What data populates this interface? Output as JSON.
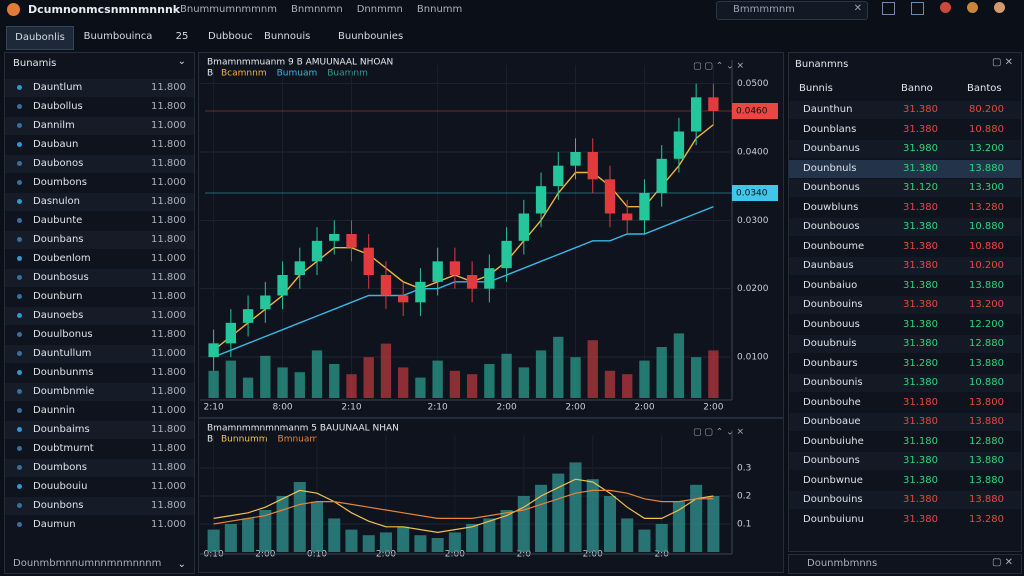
{
  "header": {
    "title": "Dcumnonmcsnmnmnnnk",
    "menu": [
      "Bnummumnmmnm",
      "Bnmnnmn",
      "Dnnmmn",
      "Bnnumm"
    ],
    "search": "Bmmmmnm"
  },
  "left_tabs": [
    "Daubonlis",
    "Buumbouinca",
    "25"
  ],
  "main_tabs": [
    "Dubbouc",
    "Bunnouis",
    "Buunbounies"
  ],
  "watchlist": {
    "title": "Bunamis",
    "rows": [
      [
        "Dauntlum",
        "11.800"
      ],
      [
        "Daubollus",
        "11.800"
      ],
      [
        "Dannilm",
        "11.000"
      ],
      [
        "Daubaun",
        "11.800"
      ],
      [
        "Daubonos",
        "11.800"
      ],
      [
        "Doumbons",
        "11.000"
      ],
      [
        "Dasnulon",
        "11.800"
      ],
      [
        "Daubunte",
        "11.800"
      ],
      [
        "Dounbans",
        "11.800"
      ],
      [
        "Doubenlom",
        "11.000"
      ],
      [
        "Dounbosus",
        "11.800"
      ],
      [
        "Dounburn",
        "11.800"
      ],
      [
        "Daunoebs",
        "11.000"
      ],
      [
        "Douulbonus",
        "11.800"
      ],
      [
        "Dauntullum",
        "11.000"
      ],
      [
        "Dounbunms",
        "11.800"
      ],
      [
        "Doumbnmie",
        "11.800"
      ],
      [
        "Daunnin",
        "11.000"
      ],
      [
        "Dounbaims",
        "11.800"
      ],
      [
        "Doubtmurnt",
        "11.800"
      ],
      [
        "Doumbons",
        "11.800"
      ],
      [
        "Douubouiu",
        "11.000"
      ],
      [
        "Dounbons",
        "11.800"
      ],
      [
        "Daumun",
        "11.000"
      ]
    ],
    "footer": "Dounmbmnnumnnmnmnnnm"
  },
  "chart_data": [
    {
      "type": "candlestick",
      "title": "Bmamnmmuanm 9 B AMUUNAAL NHOAN",
      "legend_prefix": "B",
      "categories": [
        "2:10",
        null,
        null,
        null,
        "8:00",
        null,
        null,
        null,
        "2:10",
        null,
        null,
        null,
        null,
        "2:10",
        null,
        null,
        null,
        "2:00",
        null,
        null,
        null,
        "2:00",
        null,
        null,
        null,
        "2:00",
        null,
        null,
        null,
        "2:00"
      ],
      "open": [
        0.01,
        0.012,
        0.015,
        0.017,
        0.019,
        0.022,
        0.024,
        0.027,
        0.028,
        0.026,
        0.022,
        0.019,
        0.018,
        0.021,
        0.024,
        0.022,
        0.02,
        0.023,
        0.027,
        0.031,
        0.035,
        0.038,
        0.04,
        0.036,
        0.031,
        0.03,
        0.034,
        0.039,
        0.043,
        0.048
      ],
      "high": [
        0.014,
        0.017,
        0.019,
        0.021,
        0.024,
        0.026,
        0.029,
        0.03,
        0.03,
        0.028,
        0.024,
        0.021,
        0.023,
        0.026,
        0.026,
        0.024,
        0.025,
        0.029,
        0.033,
        0.037,
        0.04,
        0.042,
        0.042,
        0.038,
        0.033,
        0.036,
        0.041,
        0.045,
        0.05,
        0.05
      ],
      "low": [
        0.008,
        0.01,
        0.013,
        0.015,
        0.017,
        0.02,
        0.022,
        0.025,
        0.024,
        0.02,
        0.017,
        0.016,
        0.016,
        0.019,
        0.02,
        0.018,
        0.018,
        0.021,
        0.025,
        0.029,
        0.033,
        0.036,
        0.034,
        0.029,
        0.028,
        0.028,
        0.032,
        0.037,
        0.041,
        0.044
      ],
      "close": [
        0.012,
        0.015,
        0.017,
        0.019,
        0.022,
        0.024,
        0.027,
        0.028,
        0.026,
        0.022,
        0.019,
        0.018,
        0.021,
        0.024,
        0.022,
        0.02,
        0.023,
        0.027,
        0.031,
        0.035,
        0.038,
        0.04,
        0.036,
        0.031,
        0.03,
        0.034,
        0.039,
        0.043,
        0.048,
        0.046
      ],
      "up_color": "#25c69b",
      "down_color": "#e23b3f",
      "series": [
        {
          "name": "Bcamnnm",
          "color": "#f0b43a",
          "values": [
            0.011,
            0.013,
            0.015,
            0.017,
            0.019,
            0.022,
            0.024,
            0.026,
            0.026,
            0.025,
            0.023,
            0.021,
            0.02,
            0.021,
            0.022,
            0.021,
            0.022,
            0.024,
            0.027,
            0.03,
            0.034,
            0.037,
            0.037,
            0.035,
            0.032,
            0.032,
            0.035,
            0.038,
            0.042,
            0.044
          ]
        },
        {
          "name": "Bumuam",
          "color": "#3cb4e6",
          "values": [
            0.01,
            0.011,
            0.012,
            0.013,
            0.014,
            0.015,
            0.016,
            0.017,
            0.018,
            0.019,
            0.019,
            0.019,
            0.02,
            0.02,
            0.021,
            0.021,
            0.021,
            0.022,
            0.023,
            0.024,
            0.025,
            0.026,
            0.027,
            0.027,
            0.028,
            0.028,
            0.029,
            0.03,
            0.031,
            0.032
          ]
        }
      ],
      "volume": {
        "name": "Buamnm",
        "color": "#2b9c8c",
        "values": [
          40,
          55,
          30,
          62,
          45,
          38,
          70,
          50,
          35,
          60,
          80,
          45,
          30,
          55,
          40,
          35,
          50,
          65,
          45,
          70,
          90,
          60,
          85,
          40,
          35,
          55,
          75,
          95,
          60,
          70
        ],
        "ylim": [
          0,
          100
        ]
      },
      "ylim": [
        0.004,
        0.052
      ],
      "yticks": [
        {
          "value": 0.05,
          "label": "0.0500"
        },
        {
          "value": 0.04,
          "label": "0.0400"
        },
        {
          "value": 0.03,
          "label": "0.0300"
        },
        {
          "value": 0.02,
          "label": "0.0200"
        },
        {
          "value": 0.01,
          "label": "0.0100"
        }
      ],
      "price_tags": [
        {
          "value": 0.046,
          "label": "0.0460",
          "color": "#e8483f"
        },
        {
          "value": 0.034,
          "label": "0.0340",
          "color": "#3fc6e8"
        }
      ]
    },
    {
      "type": "bar",
      "title": "Bmamnmmnmnmanm 5 BAUUNAAL NHAN",
      "legend_prefix": "B",
      "categories": [
        "0:10",
        null,
        null,
        "2:00",
        null,
        null,
        "0:10",
        null,
        null,
        null,
        "2:00",
        null,
        null,
        null,
        "2:00",
        null,
        null,
        null,
        "2:0",
        null,
        null,
        null,
        "2:00",
        null,
        null,
        null,
        "2:0",
        null,
        null,
        null
      ],
      "values": [
        0.08,
        0.1,
        0.12,
        0.15,
        0.2,
        0.25,
        0.18,
        0.12,
        0.08,
        0.06,
        0.07,
        0.09,
        0.06,
        0.05,
        0.07,
        0.1,
        0.12,
        0.15,
        0.2,
        0.24,
        0.28,
        0.32,
        0.26,
        0.2,
        0.12,
        0.08,
        0.1,
        0.18,
        0.24,
        0.2
      ],
      "color": "#2f8c8a",
      "series": [
        {
          "name": "Bunnumm",
          "color": "#f0c24a",
          "values": [
            0.12,
            0.13,
            0.14,
            0.16,
            0.19,
            0.22,
            0.21,
            0.18,
            0.14,
            0.11,
            0.09,
            0.09,
            0.08,
            0.07,
            0.08,
            0.09,
            0.11,
            0.13,
            0.16,
            0.2,
            0.23,
            0.26,
            0.25,
            0.21,
            0.16,
            0.12,
            0.12,
            0.15,
            0.19,
            0.2
          ]
        },
        {
          "name": "Bmnuam",
          "color": "#e8843a",
          "values": [
            0.1,
            0.11,
            0.12,
            0.13,
            0.15,
            0.17,
            0.18,
            0.18,
            0.17,
            0.16,
            0.15,
            0.14,
            0.13,
            0.12,
            0.12,
            0.12,
            0.13,
            0.14,
            0.15,
            0.17,
            0.19,
            0.21,
            0.22,
            0.22,
            0.21,
            0.19,
            0.18,
            0.18,
            0.19,
            0.19
          ]
        }
      ],
      "ylim": [
        0,
        0.4
      ],
      "yticks": [
        0.3,
        0.2,
        0.1
      ]
    }
  ],
  "orderbook": {
    "title": "Bunanmns",
    "columns": [
      "Bunnis",
      "Banno",
      "Bantos"
    ],
    "rows": [
      {
        "name": "Daunthun",
        "bid": "31.380",
        "ask": "80.200",
        "color": "#e8483f"
      },
      {
        "name": "Dounblans",
        "bid": "31.380",
        "ask": "10.880",
        "color": "#e8483f"
      },
      {
        "name": "Dounbanus",
        "bid": "31.980",
        "ask": "13.200",
        "color": "#2ed37a"
      },
      {
        "name": "Dounbnuls",
        "bid": "31.380",
        "ask": "13.880",
        "color": "#2ed37a"
      },
      {
        "name": "Dounbonus",
        "bid": "31.120",
        "ask": "13.300",
        "color": "#2ed37a"
      },
      {
        "name": "Douwbluns",
        "bid": "31.380",
        "ask": "13.280",
        "color": "#e8483f"
      },
      {
        "name": "Dounbouos",
        "bid": "31.380",
        "ask": "10.880",
        "color": "#2ed37a"
      },
      {
        "name": "Dounboume",
        "bid": "31.380",
        "ask": "10.880",
        "color": "#e8483f"
      },
      {
        "name": "Daunbaus",
        "bid": "31.380",
        "ask": "10.200",
        "color": "#e8483f"
      },
      {
        "name": "Dounbaiuo",
        "bid": "31.380",
        "ask": "13.880",
        "color": "#2ed37a"
      },
      {
        "name": "Dounbouins",
        "bid": "31.380",
        "ask": "13.200",
        "color": "#e8483f"
      },
      {
        "name": "Dounbouus",
        "bid": "31.380",
        "ask": "12.200",
        "color": "#2ed37a"
      },
      {
        "name": "Douubnuis",
        "bid": "31.380",
        "ask": "12.880",
        "color": "#2ed37a"
      },
      {
        "name": "Dounbaurs",
        "bid": "31.280",
        "ask": "13.880",
        "color": "#2ed37a"
      },
      {
        "name": "Dounbounis",
        "bid": "31.380",
        "ask": "10.880",
        "color": "#2ed37a"
      },
      {
        "name": "Dounbouhe",
        "bid": "31.180",
        "ask": "13.800",
        "color": "#e8483f"
      },
      {
        "name": "Dounboaue",
        "bid": "31.380",
        "ask": "13.880",
        "color": "#e8483f"
      },
      {
        "name": "Dounbuiuhe",
        "bid": "31.180",
        "ask": "12.880",
        "color": "#2ed37a"
      },
      {
        "name": "Dounbouns",
        "bid": "31.380",
        "ask": "13.880",
        "color": "#2ed37a"
      },
      {
        "name": "Dounbwnue",
        "bid": "31.380",
        "ask": "13.880",
        "color": "#2ed37a"
      },
      {
        "name": "Dounbouins",
        "bid": "31.380",
        "ask": "13.880",
        "color": "#e8483f"
      },
      {
        "name": "Dounbuiunu",
        "bid": "31.380",
        "ask": "13.280",
        "color": "#e8483f"
      }
    ],
    "footer": "Dounmbmnns"
  }
}
